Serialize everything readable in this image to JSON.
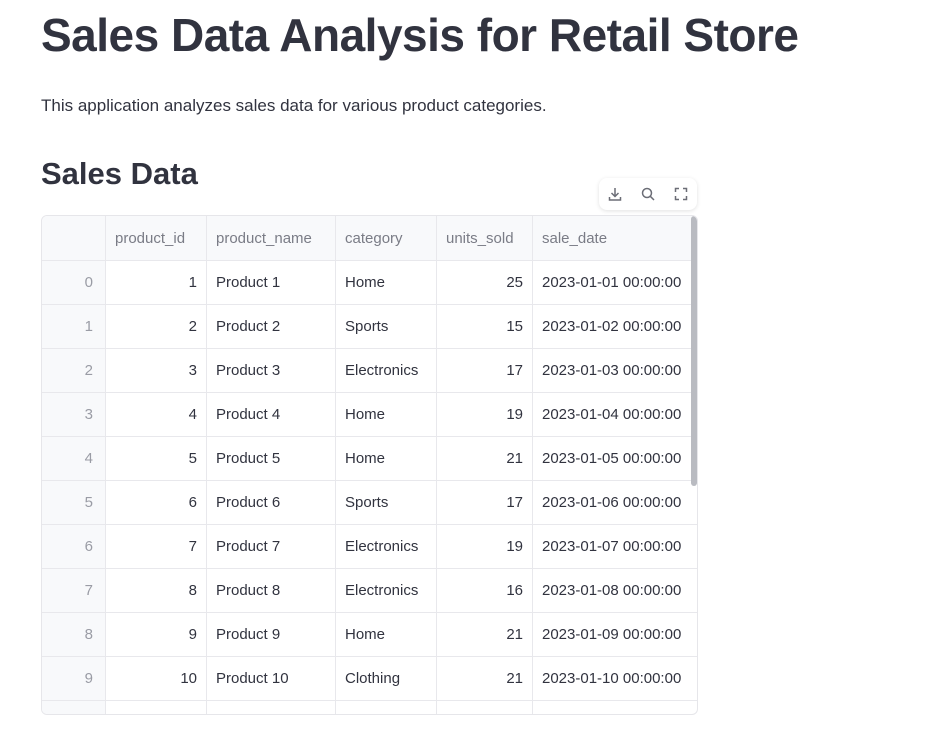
{
  "header": {
    "title": "Sales Data Analysis for Retail Store",
    "description": "This application analyzes sales data for various product categories."
  },
  "section": {
    "title": "Sales Data"
  },
  "table": {
    "columns": [
      "product_id",
      "product_name",
      "category",
      "units_sold",
      "sale_date"
    ],
    "index": [
      "0",
      "1",
      "2",
      "3",
      "4",
      "5",
      "6",
      "7",
      "8",
      "9"
    ],
    "rows": [
      [
        "1",
        "Product 1",
        "Home",
        "25",
        "2023-01-01 00:00:00"
      ],
      [
        "2",
        "Product 2",
        "Sports",
        "15",
        "2023-01-02 00:00:00"
      ],
      [
        "3",
        "Product 3",
        "Electronics",
        "17",
        "2023-01-03 00:00:00"
      ],
      [
        "4",
        "Product 4",
        "Home",
        "19",
        "2023-01-04 00:00:00"
      ],
      [
        "5",
        "Product 5",
        "Home",
        "21",
        "2023-01-05 00:00:00"
      ],
      [
        "6",
        "Product 6",
        "Sports",
        "17",
        "2023-01-06 00:00:00"
      ],
      [
        "7",
        "Product 7",
        "Electronics",
        "19",
        "2023-01-07 00:00:00"
      ],
      [
        "8",
        "Product 8",
        "Electronics",
        "16",
        "2023-01-08 00:00:00"
      ],
      [
        "9",
        "Product 9",
        "Home",
        "21",
        "2023-01-09 00:00:00"
      ],
      [
        "10",
        "Product 10",
        "Clothing",
        "21",
        "2023-01-10 00:00:00"
      ]
    ]
  }
}
